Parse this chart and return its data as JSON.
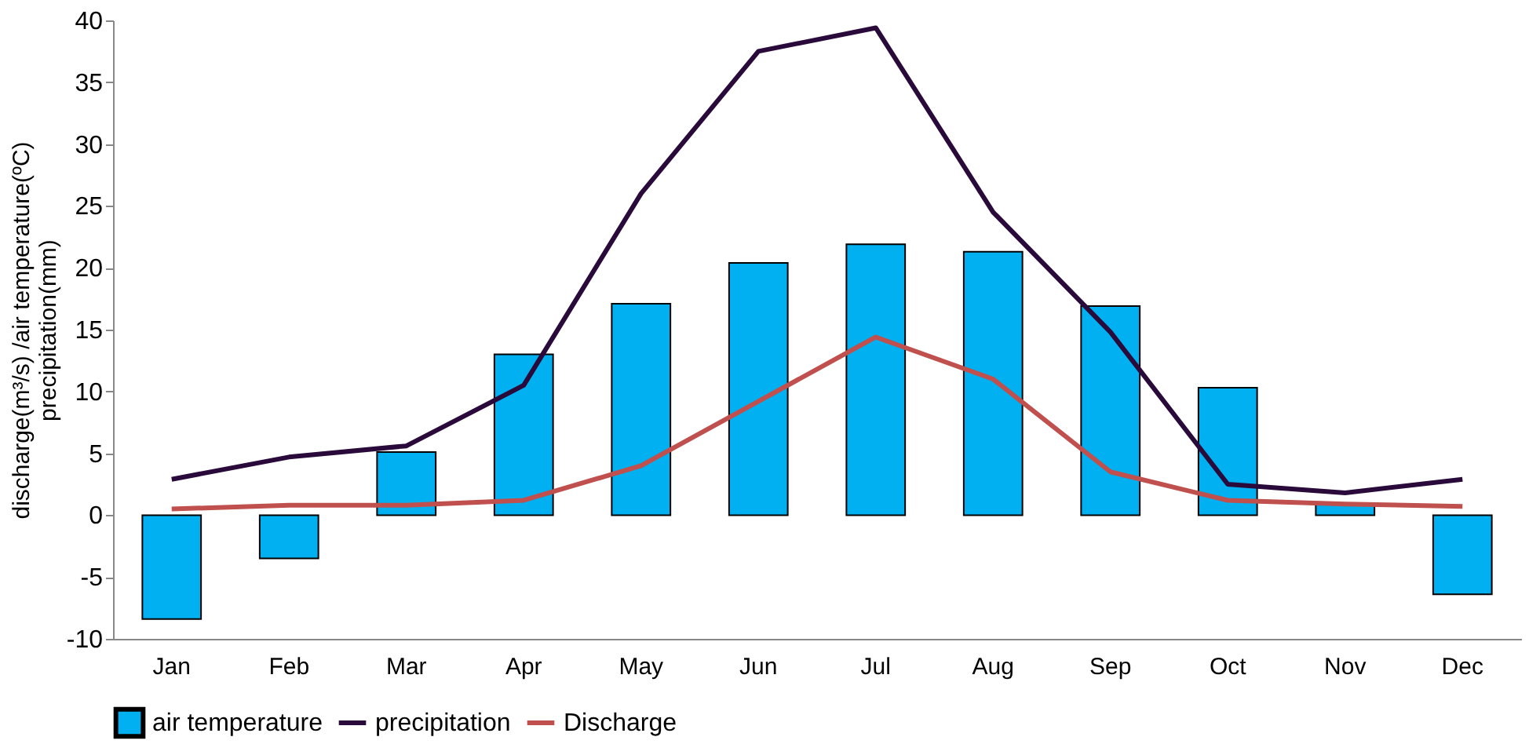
{
  "chart_data": {
    "type": "bar",
    "ylabel": "discharge(m³/s) /air temperature(ºC)\nprecipitation(mm)",
    "categories": [
      "Jan",
      "Feb",
      "Mar",
      "Apr",
      "May",
      "Jun",
      "Jul",
      "Aug",
      "Sep",
      "Oct",
      "Nov",
      "Dec"
    ],
    "series": [
      {
        "name": "air temperature",
        "color": "#00b0f0",
        "values": [
          -8.4,
          -3.5,
          5.1,
          13.0,
          17.1,
          20.4,
          21.9,
          21.3,
          16.9,
          10.3,
          0.9,
          -6.4
        ]
      },
      {
        "name": "precipitation",
        "type": "line",
        "color": "#2a0a3a",
        "values": [
          2.9,
          4.7,
          5.6,
          10.5,
          26.0,
          37.5,
          39.4,
          24.5,
          14.8,
          2.5,
          1.8,
          2.9
        ]
      },
      {
        "name": "Discharge",
        "type": "line",
        "color": "#c0504d",
        "values": [
          0.5,
          0.8,
          0.8,
          1.2,
          4.0,
          9.2,
          14.4,
          11.0,
          3.5,
          1.2,
          0.9,
          0.7
        ]
      }
    ],
    "ylim": [
      -10,
      40
    ],
    "yticks": [
      -10,
      -5,
      0,
      5,
      10,
      15,
      20,
      25,
      30,
      35,
      40
    ],
    "grid": false,
    "legend": "bottom"
  }
}
